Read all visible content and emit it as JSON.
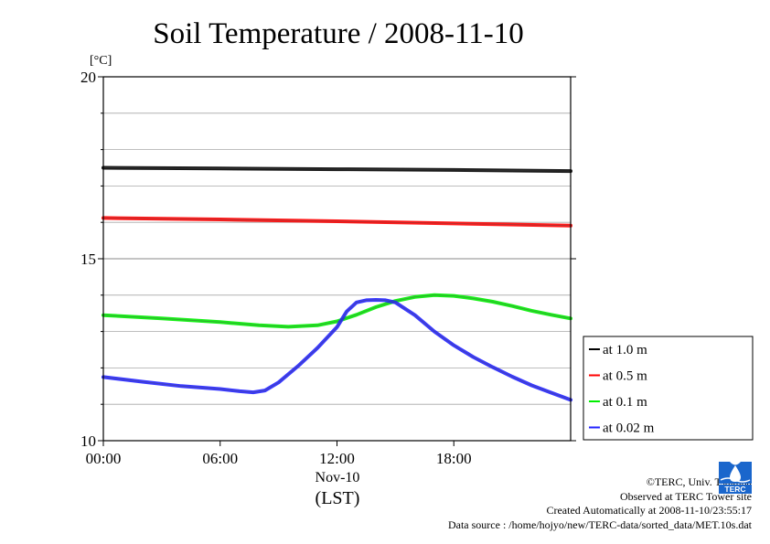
{
  "chart_data": {
    "type": "line",
    "title": "Soil Temperature / 2008-11-10",
    "ylabel": "[°C]",
    "xlabel_date": "Nov-10",
    "xlabel_tz": "(LST)",
    "xlim": [
      0,
      24
    ],
    "ylim": [
      10,
      20
    ],
    "y_ticks": [
      10,
      15,
      20
    ],
    "y_minor_gridlines": [
      11,
      12,
      13,
      14,
      16,
      17,
      18,
      19
    ],
    "x_ticks": [
      "00:00",
      "06:00",
      "12:00",
      "18:00"
    ],
    "grid": true,
    "legend_position": "right",
    "series": [
      {
        "name": "at 1.0 m",
        "color": "#000000",
        "x": [
          0,
          6,
          12,
          18,
          24
        ],
        "y": [
          17.5,
          17.48,
          17.46,
          17.44,
          17.41
        ]
      },
      {
        "name": "at 0.5 m",
        "color": "#ff0000",
        "x": [
          0,
          6,
          12,
          18,
          24
        ],
        "y": [
          16.12,
          16.08,
          16.03,
          15.97,
          15.91
        ]
      },
      {
        "name": "at 0.1 m",
        "color": "#00ee00",
        "x": [
          0,
          3,
          6,
          8,
          9.5,
          11,
          12,
          13,
          14,
          15,
          16,
          17,
          18,
          19,
          20,
          21,
          22,
          23,
          24
        ],
        "y": [
          13.45,
          13.36,
          13.26,
          13.17,
          13.13,
          13.17,
          13.28,
          13.46,
          13.67,
          13.84,
          13.95,
          14.0,
          13.98,
          13.91,
          13.82,
          13.7,
          13.57,
          13.46,
          13.36
        ]
      },
      {
        "name": "at 0.02 m",
        "color": "#2222ff",
        "x": [
          0,
          2,
          4,
          6,
          7,
          7.7,
          8.3,
          9,
          10,
          11,
          12,
          12.5,
          13,
          13.5,
          14,
          14.5,
          15,
          16,
          17,
          18,
          19,
          20,
          21,
          22,
          23,
          24
        ],
        "y": [
          11.75,
          11.62,
          11.5,
          11.42,
          11.36,
          11.33,
          11.38,
          11.6,
          12.05,
          12.55,
          13.12,
          13.55,
          13.8,
          13.86,
          13.87,
          13.86,
          13.8,
          13.45,
          13.0,
          12.62,
          12.3,
          12.02,
          11.76,
          11.52,
          11.32,
          11.12
        ]
      }
    ]
  },
  "credits": {
    "copyright": "©TERC, Univ. Tsukuba",
    "observed": "Observed at TERC Tower site",
    "created": "Created Automatically at 2008-11-10/23:55:17",
    "source": "Data source : /home/hojyo/new/TERC-data/sorted_data/MET.10s.dat"
  },
  "logo": {
    "text": "TERC",
    "color": "#1a66cc"
  }
}
